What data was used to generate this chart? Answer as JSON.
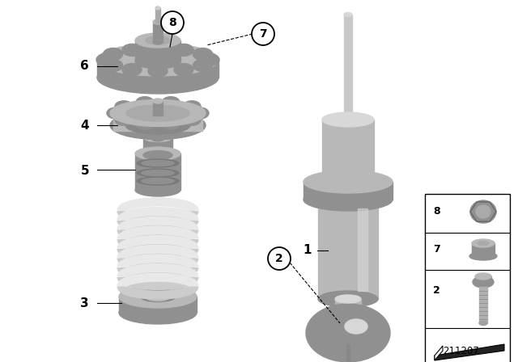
{
  "bg_color": "#ffffff",
  "pc": "#b8b8b8",
  "pcd": "#909090",
  "pcl": "#d8d8d8",
  "bc": "#000000",
  "diagram_number": "211207",
  "figsize": [
    6.4,
    4.48
  ],
  "dpi": 100
}
